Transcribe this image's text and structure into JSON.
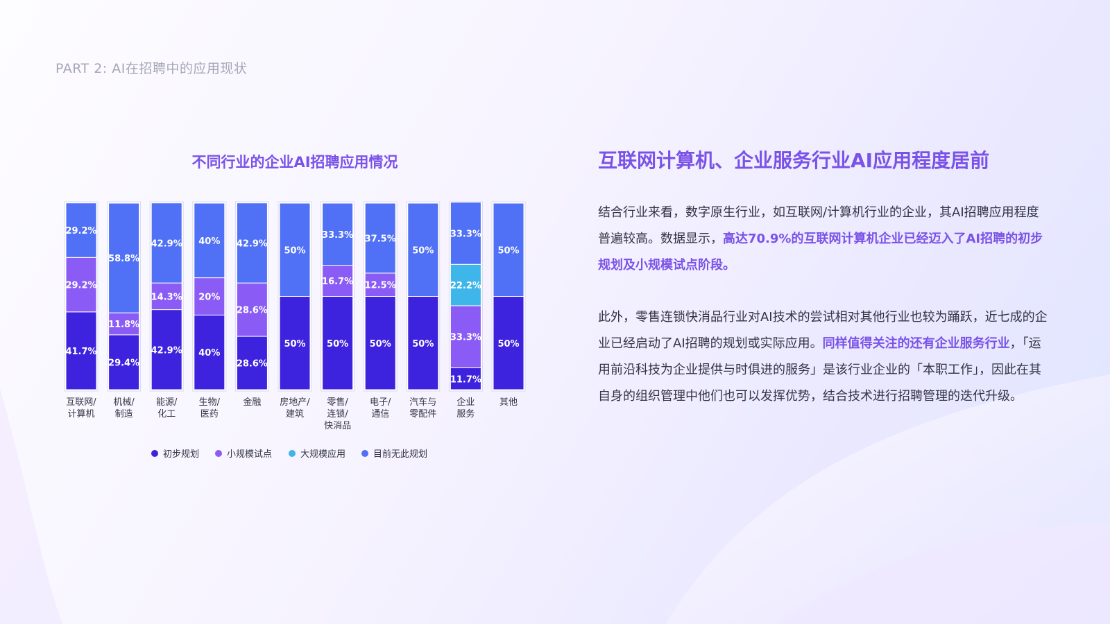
{
  "page": {
    "section_title": "PART 2:   AI在招聘中的应用现状"
  },
  "chart_data": {
    "type": "bar",
    "stacked": true,
    "percent": true,
    "title": "不同行业的企业AI招聘应用情况",
    "categories": [
      "互联网/计算机",
      "机械/制造",
      "能源/化工",
      "生物/医药",
      "金融",
      "房地产/建筑",
      "零售/连锁/快消品",
      "电子/通信",
      "汽车与零配件",
      "企业服务",
      "其他"
    ],
    "category_labels": [
      [
        "互联网/",
        "计算机"
      ],
      [
        "机械/",
        "制造"
      ],
      [
        "能源/",
        "化工"
      ],
      [
        "生物/",
        "医药"
      ],
      [
        "金融"
      ],
      [
        "房地产/",
        "建筑"
      ],
      [
        "零售/",
        "连锁/",
        "快消品"
      ],
      [
        "电子/",
        "通信"
      ],
      [
        "汽车与",
        "零配件"
      ],
      [
        "企业",
        "服务"
      ],
      [
        "其他"
      ]
    ],
    "series": [
      {
        "name": "初步规划",
        "color": "#3d23dd",
        "values": [
          41.7,
          29.4,
          42.9,
          40,
          28.6,
          50,
          50,
          50,
          50,
          11.7,
          50
        ],
        "labels": [
          "41.7%",
          "29.4%",
          "42.9%",
          "40%",
          "28.6%",
          "50%",
          "50%",
          "50%",
          "50%",
          "11.7%",
          "50%"
        ]
      },
      {
        "name": "小规模试点",
        "color": "#8a5cf5",
        "values": [
          29.2,
          11.8,
          14.3,
          20,
          28.6,
          0,
          16.7,
          12.5,
          0,
          33.3,
          0
        ],
        "labels": [
          "29.2%",
          "11.8%",
          "14.3%",
          "20%",
          "28.6%",
          "",
          "16.7%",
          "12.5%",
          "",
          "33.3%",
          ""
        ]
      },
      {
        "name": "大规模应用",
        "color": "#3eb6ea",
        "values": [
          0,
          0,
          0,
          0,
          0,
          0,
          0,
          0,
          0,
          22.2,
          0
        ],
        "labels": [
          "",
          "",
          "",
          "",
          "",
          "",
          "",
          "",
          "",
          "22.2%",
          ""
        ]
      },
      {
        "name": "目前无此规划",
        "color": "#5070f5",
        "values": [
          29.2,
          58.8,
          42.9,
          40,
          42.9,
          50,
          33.3,
          37.5,
          50,
          33.3,
          50
        ],
        "labels": [
          "29.2%",
          "58.8%",
          "42.9%",
          "40%",
          "42.9%",
          "50%",
          "33.3%",
          "37.5%",
          "50%",
          "33.3%",
          "50%"
        ]
      }
    ],
    "ylim": [
      0,
      100
    ],
    "legend_position": "bottom"
  },
  "right": {
    "heading": "互联网计算机、企业服务行业AI应用程度居前",
    "p1_a": "结合行业来看，数字原生行业，如互联网/计算机行业的企业，其AI招聘应用程度普遍较高。数据显示，",
    "p1_b": "高达70.9%的互联网计算机企业已经迈入了AI招聘的初步规划及小规模试点阶段。",
    "p2_a": "此外，零售连锁快消品行业对AI技术的尝试相对其他行业也较为踊跃，近七成的企业已经启动了AI招聘的规划或实际应用。",
    "p2_b": "同样值得关注的还有企业服务行业",
    "p2_c": "，「运用前沿科技为企业提供与时俱进的服务」是该行业企业的「本职工作」，因此在其自身的组织管理中他们也可以发挥优势，结合技术进行招聘管理的迭代升级。"
  },
  "colors": {
    "accent": "#7a52e8",
    "body_text": "#333344",
    "muted_text": "#a6a6b8"
  }
}
